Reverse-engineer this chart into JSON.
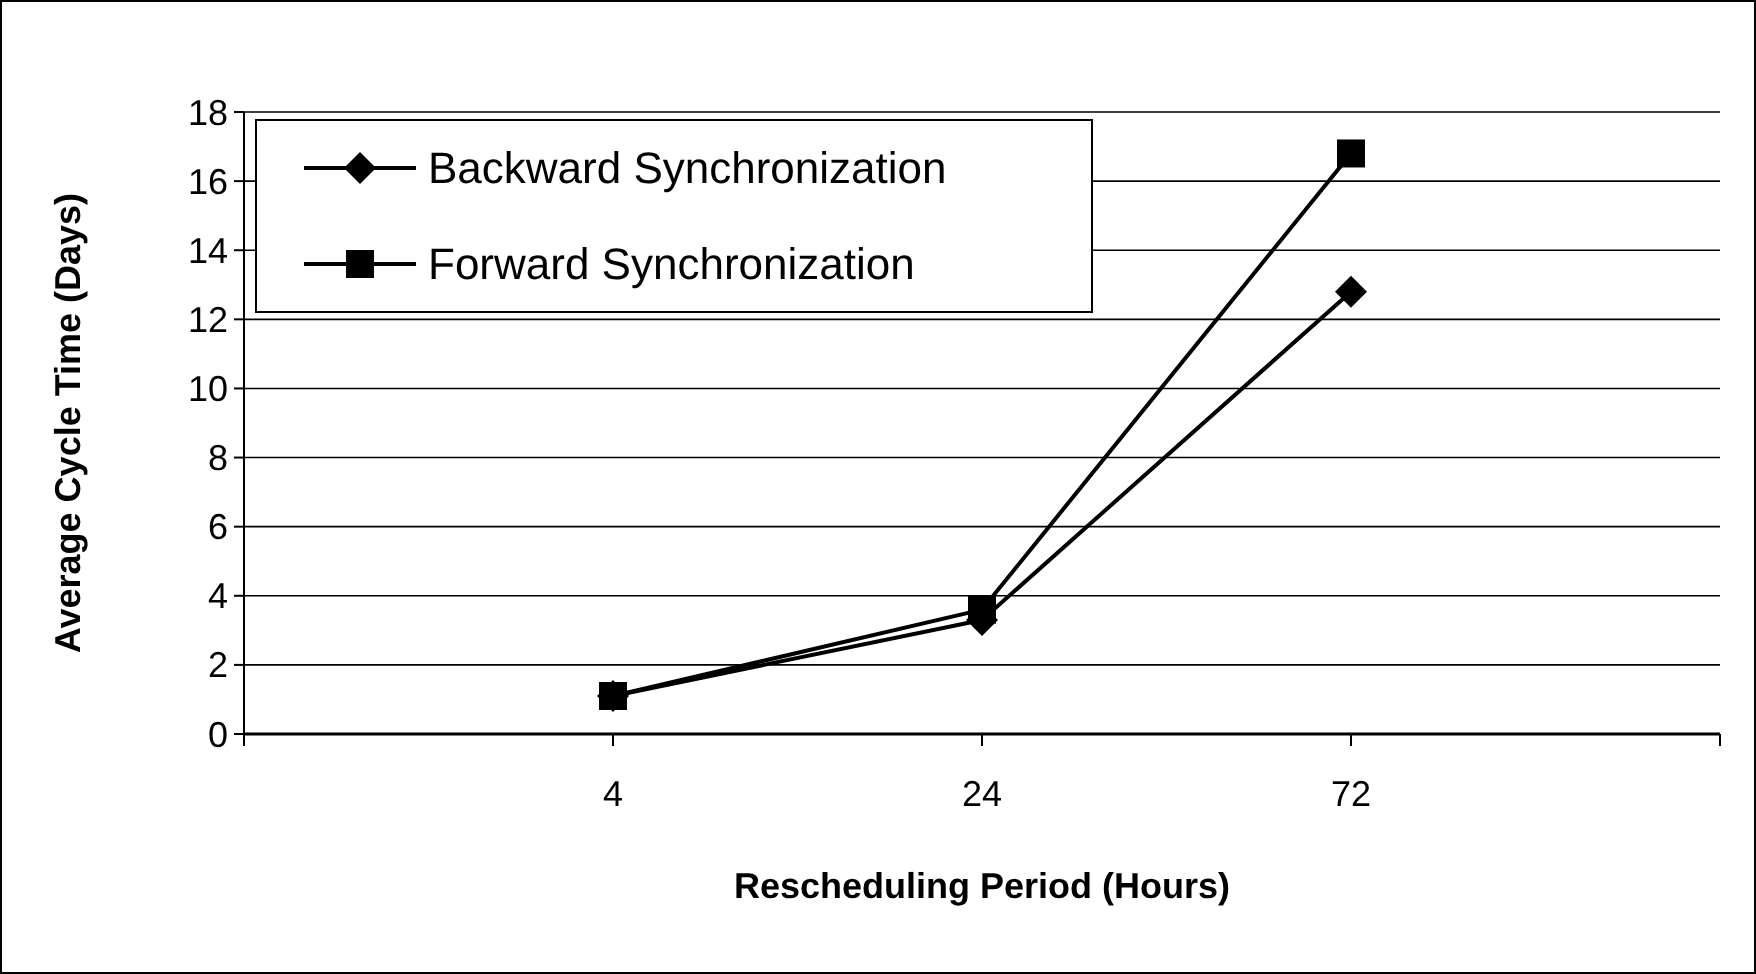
{
  "chart_data": {
    "type": "line",
    "xlabel": "Rescheduling Period (Hours)",
    "ylabel": "Average Cycle Time (Days)",
    "categories": [
      "4",
      "24",
      "72"
    ],
    "series": [
      {
        "name": "Backward Synchronization",
        "color": "#000000",
        "values": [
          1.1,
          3.3,
          12.8
        ],
        "marker": "diamond"
      },
      {
        "name": "Forward Synchronization",
        "color": "#000000",
        "values": [
          1.1,
          3.6,
          16.8
        ],
        "marker": "square"
      }
    ],
    "ylim": [
      0,
      18
    ],
    "yticks": [
      0,
      2,
      4,
      6,
      8,
      10,
      12,
      14,
      16,
      18
    ],
    "grid": "y",
    "legend": "top left",
    "line_style": "solid"
  }
}
